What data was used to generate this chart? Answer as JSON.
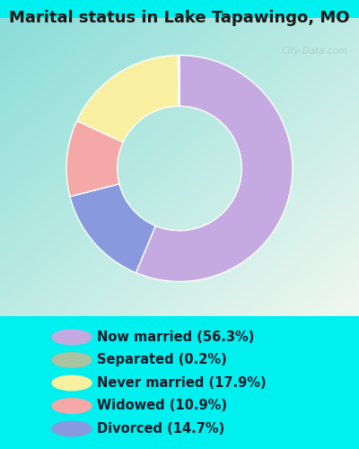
{
  "title": "Marital status in Lake Tapawingo, MO",
  "slices": [
    {
      "label": "Now married (56.3%)",
      "value": 56.3,
      "color": "#C4AAE0"
    },
    {
      "label": "Separated (0.2%)",
      "value": 0.2,
      "color": "#A8C4A0"
    },
    {
      "label": "Never married (17.9%)",
      "value": 17.9,
      "color": "#F8F0A0"
    },
    {
      "label": "Widowed (10.9%)",
      "value": 10.9,
      "color": "#F4A8A8"
    },
    {
      "label": "Divorced (14.7%)",
      "value": 14.7,
      "color": "#8899DD"
    }
  ],
  "bg_cyan": "#00EFEF",
  "chart_bg_tl": "#8ADDD8",
  "chart_bg_br": "#D8F0D0",
  "title_fontsize": 13,
  "legend_fontsize": 10.5,
  "watermark": "City-Data.com",
  "donut_width": 0.45
}
